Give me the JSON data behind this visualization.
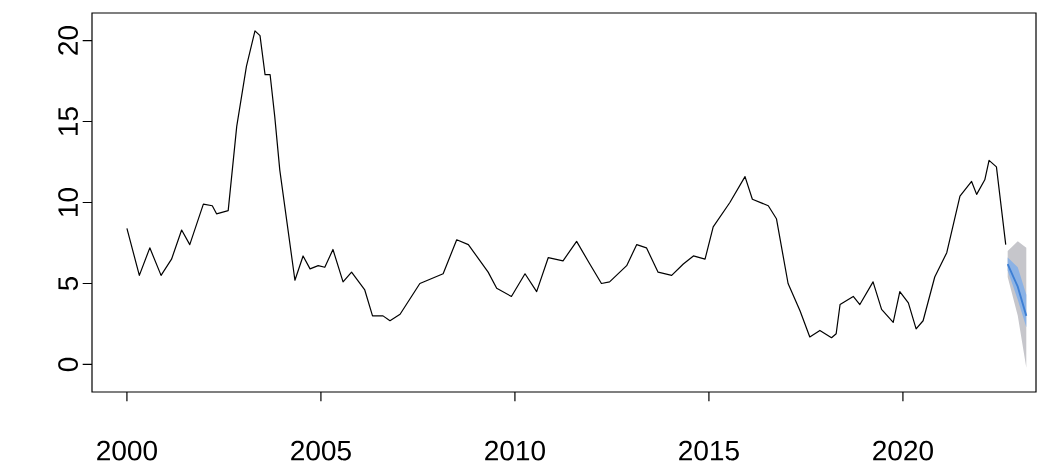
{
  "chart_data": {
    "type": "line",
    "xlim": [
      1999.1,
      2023.43
    ],
    "ylim": [
      -1.7,
      21.7
    ],
    "xticks": [
      2000,
      2005,
      2010,
      2015,
      2020
    ],
    "yticks": [
      0,
      5,
      10,
      15,
      20
    ],
    "grid": false,
    "marker": "none",
    "line_style": "solid",
    "series": [
      {
        "color": "#000000",
        "x": [
          2000.0,
          2000.32,
          2000.59,
          2000.88,
          2001.15,
          2001.41,
          2001.62,
          2001.97,
          2002.2,
          2002.31,
          2002.61,
          2002.83,
          2003.08,
          2003.3,
          2003.43,
          2003.56,
          2003.69,
          2003.81,
          2003.94,
          2004.33,
          2004.54,
          2004.72,
          2004.93,
          2005.1,
          2005.31,
          2005.57,
          2005.79,
          2006.13,
          2006.33,
          2006.6,
          2006.78,
          2007.04,
          2007.55,
          2008.15,
          2008.5,
          2008.8,
          2009.31,
          2009.53,
          2009.91,
          2010.26,
          2010.56,
          2010.86,
          2011.24,
          2011.59,
          2011.93,
          2012.23,
          2012.44,
          2012.88,
          2013.14,
          2013.39,
          2013.69,
          2014.04,
          2014.34,
          2014.6,
          2014.9,
          2015.11,
          2015.54,
          2015.93,
          2016.12,
          2016.53,
          2016.74,
          2017.04,
          2017.35,
          2017.6,
          2017.86,
          2018.16,
          2018.28,
          2018.38,
          2018.72,
          2018.89,
          2019.23,
          2019.45,
          2019.75,
          2019.92,
          2020.14,
          2020.34,
          2020.52,
          2020.82,
          2021.13,
          2021.47,
          2021.77,
          2021.9,
          2022.11,
          2022.22,
          2022.41,
          2022.65
        ],
        "values": [
          8.4,
          5.5,
          7.2,
          5.5,
          6.5,
          8.3,
          7.4,
          9.9,
          9.8,
          9.3,
          9.5,
          14.7,
          18.4,
          20.6,
          20.3,
          17.9,
          17.9,
          15.3,
          12.0,
          5.2,
          6.7,
          5.9,
          6.1,
          6.0,
          7.1,
          5.1,
          5.7,
          4.6,
          3.0,
          3.0,
          2.7,
          3.1,
          5.0,
          5.6,
          7.7,
          7.4,
          5.7,
          4.7,
          4.2,
          5.6,
          4.5,
          6.6,
          6.4,
          7.6,
          6.2,
          5.0,
          5.1,
          6.1,
          7.4,
          7.2,
          5.7,
          5.5,
          6.2,
          6.7,
          6.5,
          8.5,
          10.0,
          11.6,
          10.2,
          9.8,
          9.0,
          5.0,
          3.3,
          1.7,
          2.1,
          1.65,
          1.9,
          3.7,
          4.2,
          3.7,
          5.1,
          3.4,
          2.6,
          4.5,
          3.8,
          2.2,
          2.7,
          5.4,
          6.9,
          10.4,
          11.3,
          10.5,
          11.4,
          12.6,
          12.2,
          7.4
        ]
      },
      {
        "color": "#3d7fd4",
        "x": [
          2022.7,
          2022.96,
          2023.18
        ],
        "values": [
          6.2,
          4.8,
          3.0
        ],
        "lower": [
          5.8,
          4.0,
          2.3
        ],
        "upper": [
          6.6,
          6.0,
          4.3
        ]
      },
      {
        "color": "#a0a0a8",
        "x": [
          2022.7,
          2022.96,
          2023.18
        ],
        "values": [
          null,
          null,
          null
        ],
        "lower": [
          5.4,
          3.0,
          -0.2
        ],
        "upper": [
          7.0,
          7.6,
          7.2
        ]
      }
    ]
  }
}
